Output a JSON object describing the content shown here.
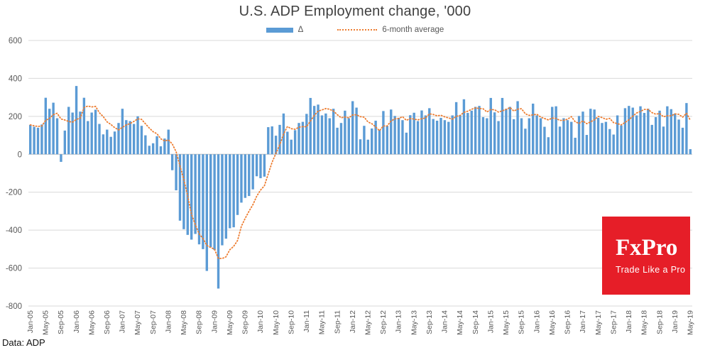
{
  "title": "U.S. ADP Employment change, '000",
  "legend": {
    "bar_series_label": "Δ",
    "line_series_label": "6-month average"
  },
  "source_note": "Data: ADP",
  "logo": {
    "name": "FxPro",
    "tagline": "Trade Like a Pro",
    "bg_color": "#e61e28",
    "text_color": "#ffffff"
  },
  "colors": {
    "bar": "#5B9BD5",
    "average_line": "#ED7D31",
    "grid": "#d9d9d9",
    "zero_line": "#bfbfbf",
    "axis_text": "#595959",
    "title_text": "#404040"
  },
  "chart_data": {
    "type": "bar",
    "title": "U.S. ADP Employment change, '000",
    "xlabel": "",
    "ylabel": "",
    "x_start": "Jan-05",
    "x_end": "May-19",
    "frequency": "monthly",
    "ylim": [
      -800,
      600
    ],
    "yticks": [
      600,
      400,
      200,
      0,
      -200,
      -400,
      -600,
      -800
    ],
    "grid": "horizontal",
    "legend_position": "top-center",
    "tick_label_every_n_months": 4,
    "tick_labels": [
      "Jan-05",
      "May-05",
      "Sep-05",
      "Jan-06",
      "May-06",
      "Sep-06",
      "Jan-07",
      "May-07",
      "Sep-07",
      "Jan-08",
      "May-08",
      "Sep-08",
      "Jan-09",
      "May-09",
      "Sep-09",
      "Jan-10",
      "May-10",
      "Sep-10",
      "Jan-11",
      "May-11",
      "Sep-11",
      "Jan-12",
      "May-12",
      "Sep-12",
      "Jan-13",
      "May-13",
      "Sep-13",
      "Jan-14",
      "May-14",
      "Sep-14",
      "Jan-15",
      "May-15",
      "Sep-15",
      "Jan-16",
      "May-16",
      "Sep-16",
      "Jan-17",
      "May-17",
      "Sep-17",
      "Jan-18",
      "May-18",
      "Sep-18",
      "Jan-19",
      "May-19"
    ],
    "series": [
      {
        "name": "Δ",
        "type": "bar",
        "color": "#5B9BD5",
        "values": [
          155,
          145,
          140,
          157,
          298,
          240,
          272,
          190,
          -40,
          125,
          250,
          220,
          360,
          225,
          298,
          175,
          220,
          235,
          160,
          105,
          130,
          92,
          120,
          165,
          240,
          180,
          175,
          160,
          200,
          150,
          100,
          45,
          58,
          95,
          42,
          83,
          130,
          -84,
          -190,
          -350,
          -395,
          -425,
          -450,
          -420,
          -475,
          -500,
          -615,
          -490,
          -505,
          -708,
          -480,
          -445,
          -390,
          -385,
          -320,
          -255,
          -230,
          -220,
          -185,
          -116,
          -126,
          -118,
          143,
          147,
          98,
          155,
          215,
          119,
          77,
          127,
          165,
          171,
          213,
          297,
          255,
          262,
          205,
          215,
          190,
          240,
          140,
          165,
          230,
          190,
          280,
          246,
          79,
          150,
          77,
          136,
          177,
          127,
          228,
          150,
          236,
          202,
          192,
          180,
          114,
          206,
          219,
          175,
          231,
          205,
          243,
          186,
          177,
          192,
          180,
          171,
          205,
          275,
          205,
          290,
          218,
          230,
          250,
          255,
          196,
          190,
          297,
          221,
          175,
          297,
          240,
          250,
          185,
          280,
          190,
          135,
          190,
          267,
          205,
          190,
          145,
          90,
          250,
          253,
          146,
          190,
          180,
          171,
          87,
          202,
          225,
          102,
          240,
          236,
          192,
          165,
          171,
          133,
          104,
          205,
          152,
          243,
          255,
          246,
          205,
          253,
          218,
          240,
          155,
          196,
          230,
          146,
          253,
          238,
          215,
          183,
          140,
          270,
          27
        ]
      },
      {
        "name": "6-month average",
        "type": "line",
        "style": "dotted",
        "color": "#ED7D31",
        "derived_from": "trailing 6-month mean of Δ series"
      }
    ]
  }
}
